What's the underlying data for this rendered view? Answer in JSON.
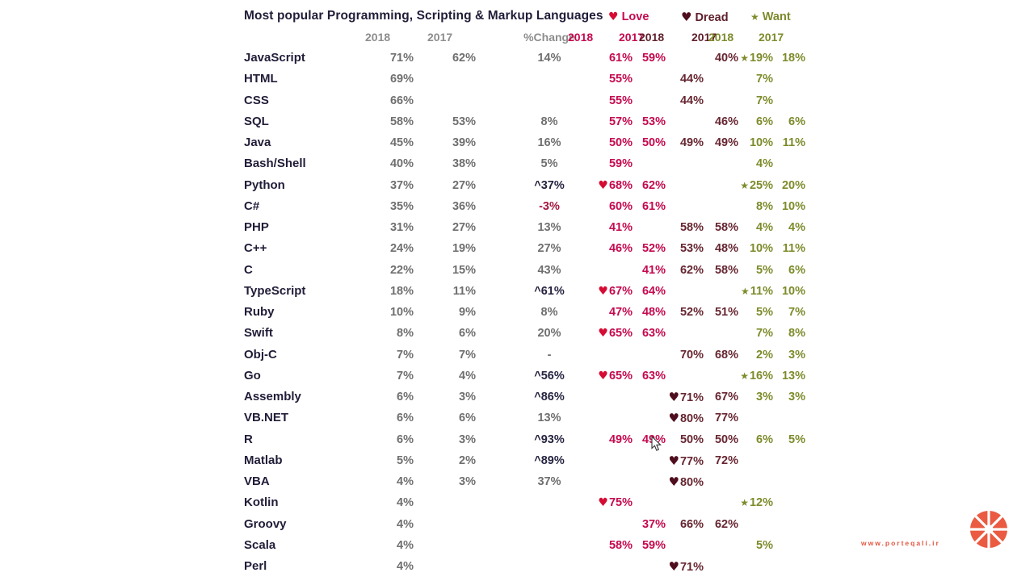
{
  "chart_data": {
    "type": "table",
    "title": "Most popular Programming, Scripting & Markup Languages",
    "legend": {
      "love": {
        "icon": "♥",
        "label": "Love"
      },
      "dread": {
        "icon": "♥",
        "label": "Dread"
      },
      "want": {
        "icon": "★",
        "label": "Want"
      }
    },
    "columns": [
      "2018",
      "2017",
      "%Change",
      "2018",
      "2017",
      "2018",
      "2017",
      "2018",
      "2017"
    ],
    "column_semantics": [
      "popularity-2018",
      "popularity-2017",
      "percent-change",
      "love-2018",
      "love-2017",
      "dread-2018",
      "dread-2017",
      "want-2018",
      "want-2017"
    ],
    "rows": [
      {
        "name": "JavaScript",
        "pop18": "71%",
        "pop17": "62%",
        "chg": "14%",
        "chgStyle": "",
        "lv18": "61%",
        "lv17": "59%",
        "loved": false,
        "dr18": "",
        "dr17": "40%",
        "dreaded": false,
        "wt18": "19%",
        "wt17": "18%",
        "wanted": true
      },
      {
        "name": "HTML",
        "pop18": "69%",
        "pop17": "",
        "chg": "",
        "chgStyle": "",
        "lv18": "55%",
        "lv17": "",
        "loved": false,
        "dr18": "44%",
        "dr17": "",
        "dreaded": false,
        "wt18": "7%",
        "wt17": "",
        "wanted": false
      },
      {
        "name": "CSS",
        "pop18": "66%",
        "pop17": "",
        "chg": "",
        "chgStyle": "",
        "lv18": "55%",
        "lv17": "",
        "loved": false,
        "dr18": "44%",
        "dr17": "",
        "dreaded": false,
        "wt18": "7%",
        "wt17": "",
        "wanted": false
      },
      {
        "name": "SQL",
        "pop18": "58%",
        "pop17": "53%",
        "chg": "8%",
        "chgStyle": "",
        "lv18": "57%",
        "lv17": "53%",
        "loved": false,
        "dr18": "",
        "dr17": "46%",
        "dreaded": false,
        "wt18": "6%",
        "wt17": "6%",
        "wanted": false
      },
      {
        "name": "Java",
        "pop18": "45%",
        "pop17": "39%",
        "chg": "16%",
        "chgStyle": "",
        "lv18": "50%",
        "lv17": "50%",
        "loved": false,
        "dr18": "49%",
        "dr17": "49%",
        "dreaded": false,
        "wt18": "10%",
        "wt17": "11%",
        "wanted": false
      },
      {
        "name": "Bash/Shell",
        "pop18": "40%",
        "pop17": "38%",
        "chg": "5%",
        "chgStyle": "",
        "lv18": "59%",
        "lv17": "",
        "loved": false,
        "dr18": "",
        "dr17": "",
        "dreaded": false,
        "wt18": "4%",
        "wt17": "",
        "wanted": false
      },
      {
        "name": "Python",
        "pop18": "37%",
        "pop17": "27%",
        "chg": "^37%",
        "chgStyle": "up",
        "lv18": "68%",
        "lv17": "62%",
        "loved": true,
        "dr18": "",
        "dr17": "",
        "dreaded": false,
        "wt18": "25%",
        "wt17": "20%",
        "wanted": true
      },
      {
        "name": "C#",
        "pop18": "35%",
        "pop17": "36%",
        "chg": "-3%",
        "chgStyle": "neg",
        "lv18": "60%",
        "lv17": "61%",
        "loved": false,
        "dr18": "",
        "dr17": "",
        "dreaded": false,
        "wt18": "8%",
        "wt17": "10%",
        "wanted": false
      },
      {
        "name": "PHP",
        "pop18": "31%",
        "pop17": "27%",
        "chg": "13%",
        "chgStyle": "",
        "lv18": "41%",
        "lv17": "",
        "loved": false,
        "dr18": "58%",
        "dr17": "58%",
        "dreaded": false,
        "wt18": "4%",
        "wt17": "4%",
        "wanted": false
      },
      {
        "name": "C++",
        "pop18": "24%",
        "pop17": "19%",
        "chg": "27%",
        "chgStyle": "",
        "lv18": "46%",
        "lv17": "52%",
        "loved": false,
        "dr18": "53%",
        "dr17": "48%",
        "dreaded": false,
        "wt18": "10%",
        "wt17": "11%",
        "wanted": false
      },
      {
        "name": "C",
        "pop18": "22%",
        "pop17": "15%",
        "chg": "43%",
        "chgStyle": "",
        "lv18": "",
        "lv17": "41%",
        "loved": false,
        "dr18": "62%",
        "dr17": "58%",
        "dreaded": false,
        "wt18": "5%",
        "wt17": "6%",
        "wanted": false
      },
      {
        "name": "TypeScript",
        "pop18": "18%",
        "pop17": "11%",
        "chg": "^61%",
        "chgStyle": "up",
        "lv18": "67%",
        "lv17": "64%",
        "loved": true,
        "dr18": "",
        "dr17": "",
        "dreaded": false,
        "wt18": "11%",
        "wt17": "10%",
        "wanted": true
      },
      {
        "name": "Ruby",
        "pop18": "10%",
        "pop17": "9%",
        "chg": "8%",
        "chgStyle": "",
        "lv18": "47%",
        "lv17": "48%",
        "loved": false,
        "dr18": "52%",
        "dr17": "51%",
        "dreaded": false,
        "wt18": "5%",
        "wt17": "7%",
        "wanted": false
      },
      {
        "name": "Swift",
        "pop18": "8%",
        "pop17": "6%",
        "chg": "20%",
        "chgStyle": "",
        "lv18": "65%",
        "lv17": "63%",
        "loved": true,
        "dr18": "",
        "dr17": "",
        "dreaded": false,
        "wt18": "7%",
        "wt17": "8%",
        "wanted": false
      },
      {
        "name": "Obj-C",
        "pop18": "7%",
        "pop17": "7%",
        "chg": "-",
        "chgStyle": "",
        "lv18": "",
        "lv17": "",
        "loved": false,
        "dr18": "70%",
        "dr17": "68%",
        "dreaded": false,
        "wt18": "2%",
        "wt17": "3%",
        "wanted": false
      },
      {
        "name": "Go",
        "pop18": "7%",
        "pop17": "4%",
        "chg": "^56%",
        "chgStyle": "up",
        "lv18": "65%",
        "lv17": "63%",
        "loved": true,
        "dr18": "",
        "dr17": "",
        "dreaded": false,
        "wt18": "16%",
        "wt17": "13%",
        "wanted": true
      },
      {
        "name": "Assembly",
        "pop18": "6%",
        "pop17": "3%",
        "chg": "^86%",
        "chgStyle": "up",
        "lv18": "",
        "lv17": "",
        "loved": false,
        "dr18": "71%",
        "dr17": "67%",
        "dreaded": true,
        "wt18": "3%",
        "wt17": "3%",
        "wanted": false
      },
      {
        "name": "VB.NET",
        "pop18": "6%",
        "pop17": "6%",
        "chg": "13%",
        "chgStyle": "",
        "lv18": "",
        "lv17": "",
        "loved": false,
        "dr18": "80%",
        "dr17": "77%",
        "dreaded": true,
        "wt18": "",
        "wt17": "",
        "wanted": false
      },
      {
        "name": "R",
        "pop18": "6%",
        "pop17": "3%",
        "chg": "^93%",
        "chgStyle": "up",
        "lv18": "49%",
        "lv17": "49%",
        "loved": false,
        "dr18": "50%",
        "dr17": "50%",
        "dreaded": false,
        "wt18": "6%",
        "wt17": "5%",
        "wanted": false
      },
      {
        "name": "Matlab",
        "pop18": "5%",
        "pop17": "2%",
        "chg": "^89%",
        "chgStyle": "up",
        "lv18": "",
        "lv17": "",
        "loved": false,
        "dr18": "77%",
        "dr17": "72%",
        "dreaded": true,
        "wt18": "",
        "wt17": "",
        "wanted": false
      },
      {
        "name": "VBA",
        "pop18": "4%",
        "pop17": "3%",
        "chg": "37%",
        "chgStyle": "",
        "lv18": "",
        "lv17": "",
        "loved": false,
        "dr18": "80%",
        "dr17": "",
        "dreaded": true,
        "wt18": "",
        "wt17": "",
        "wanted": false
      },
      {
        "name": "Kotlin",
        "pop18": "4%",
        "pop17": "",
        "chg": "",
        "chgStyle": "",
        "lv18": "75%",
        "lv17": "",
        "loved": true,
        "dr18": "",
        "dr17": "",
        "dreaded": false,
        "wt18": "12%",
        "wt17": "",
        "wanted": true
      },
      {
        "name": "Groovy",
        "pop18": "4%",
        "pop17": "",
        "chg": "",
        "chgStyle": "",
        "lv18": "",
        "lv17": "37%",
        "loved": false,
        "dr18": "66%",
        "dr17": "62%",
        "dreaded": false,
        "wt18": "",
        "wt17": "",
        "wanted": false
      },
      {
        "name": "Scala",
        "pop18": "4%",
        "pop17": "",
        "chg": "",
        "chgStyle": "",
        "lv18": "58%",
        "lv17": "59%",
        "loved": false,
        "dr18": "",
        "dr17": "",
        "dreaded": false,
        "wt18": "5%",
        "wt17": "",
        "wanted": false
      },
      {
        "name": "Perl",
        "pop18": "4%",
        "pop17": "",
        "chg": "",
        "chgStyle": "",
        "lv18": "",
        "lv17": "",
        "loved": false,
        "dr18": "71%",
        "dr17": "",
        "dreaded": true,
        "wt18": "",
        "wt17": "",
        "wanted": false
      }
    ]
  },
  "icons": {
    "love_heart": "♥",
    "dread_heart": "♥",
    "want_star": "★"
  },
  "colors": {
    "title": "#201d38",
    "plain_value": "#6f6f6f",
    "love": "#c5094e",
    "love_heart": "#d50b33",
    "dread": "#672631",
    "dread_heart": "#4f0e1d",
    "want": "#7e8b2b",
    "change_up": "#262440",
    "change_negative": "#a5173f",
    "watermark_orange": "#e2553e"
  },
  "watermark": {
    "url_text": "www.porteqali.ir",
    "logo": "orange-slice"
  }
}
